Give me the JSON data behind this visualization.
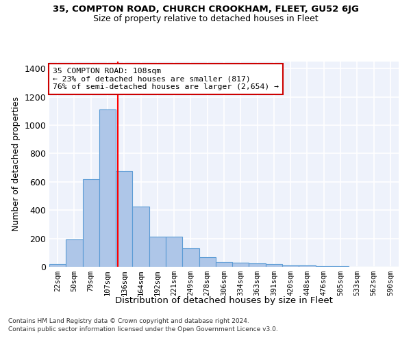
{
  "title1": "35, COMPTON ROAD, CHURCH CROOKHAM, FLEET, GU52 6JG",
  "title2": "Size of property relative to detached houses in Fleet",
  "xlabel": "Distribution of detached houses by size in Fleet",
  "ylabel": "Number of detached properties",
  "bins": [
    "22sqm",
    "50sqm",
    "79sqm",
    "107sqm",
    "136sqm",
    "164sqm",
    "192sqm",
    "221sqm",
    "249sqm",
    "278sqm",
    "306sqm",
    "334sqm",
    "363sqm",
    "391sqm",
    "420sqm",
    "448sqm",
    "476sqm",
    "505sqm",
    "533sqm",
    "562sqm",
    "590sqm"
  ],
  "values": [
    20,
    195,
    620,
    1110,
    675,
    425,
    215,
    215,
    130,
    70,
    32,
    30,
    25,
    17,
    10,
    8,
    5,
    3,
    2,
    2,
    1
  ],
  "bar_color": "#aec6e8",
  "bar_edgecolor": "#5b9bd5",
  "background_color": "#eef2fb",
  "grid_color": "#ffffff",
  "red_line_x": 3.62,
  "annotation_text": "35 COMPTON ROAD: 108sqm\n← 23% of detached houses are smaller (817)\n76% of semi-detached houses are larger (2,654) →",
  "annotation_box_color": "#ffffff",
  "annotation_box_edgecolor": "#cc0000",
  "footer1": "Contains HM Land Registry data © Crown copyright and database right 2024.",
  "footer2": "Contains public sector information licensed under the Open Government Licence v3.0.",
  "ylim": [
    0,
    1450
  ],
  "yticks": [
    0,
    200,
    400,
    600,
    800,
    1000,
    1200,
    1400
  ],
  "fig_width": 6.0,
  "fig_height": 5.0,
  "dpi": 100
}
